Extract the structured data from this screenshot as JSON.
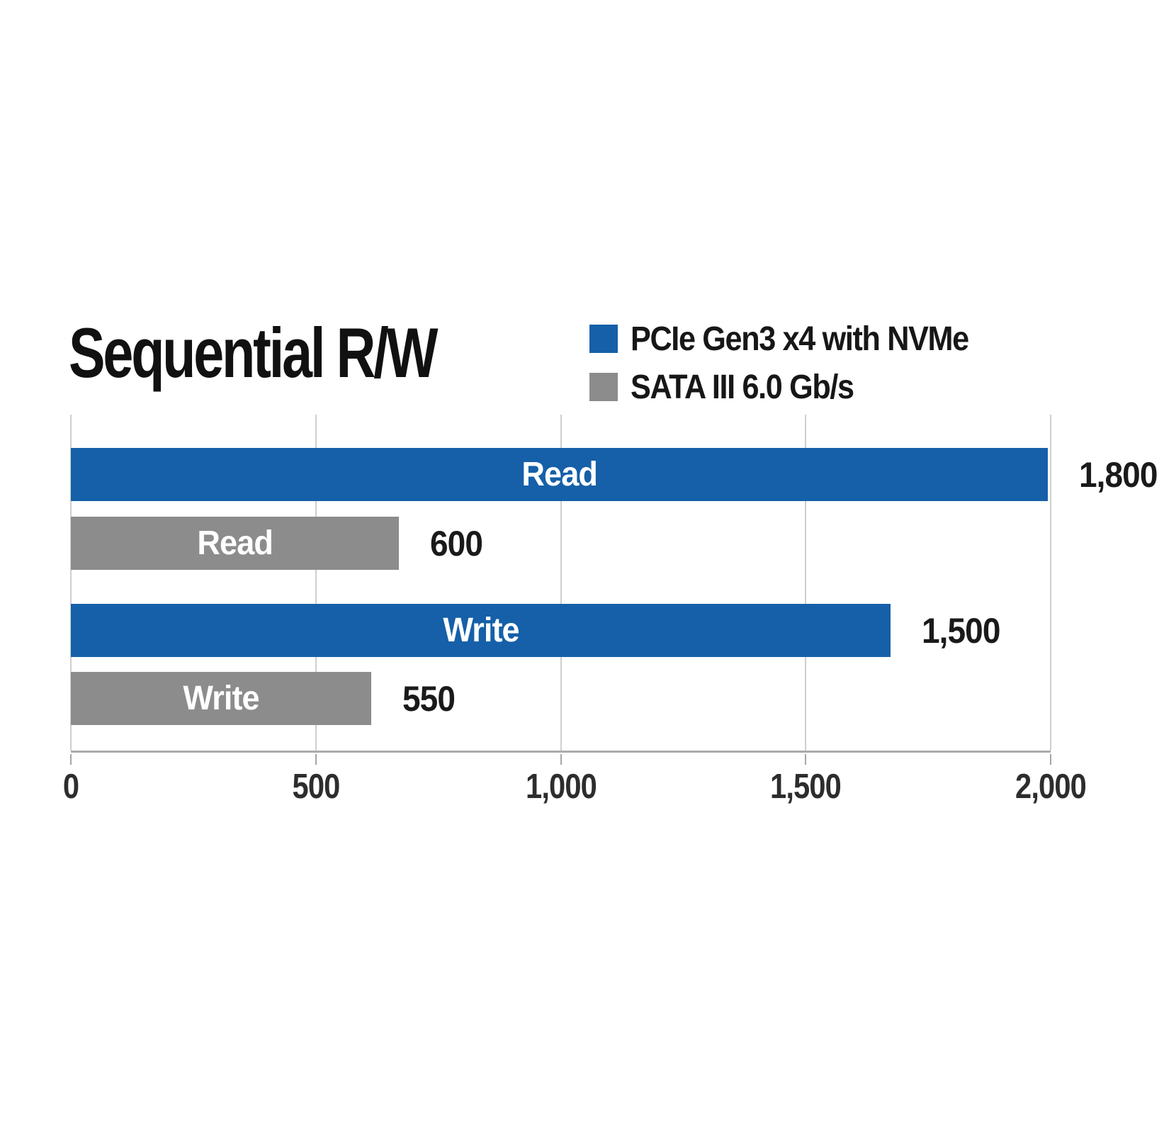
{
  "chart_data": {
    "type": "bar",
    "orientation": "horizontal",
    "title": "Sequential R/W",
    "legend_position": "top-right",
    "grid": true,
    "legend": [
      {
        "label": "PCIe Gen3 x4 with NVMe",
        "color": "#1560a8"
      },
      {
        "label": "SATA III 6.0 Gb/s",
        "color": "#8c8c8c"
      }
    ],
    "axis": {
      "min": 0,
      "max": 2000,
      "ticks": [
        0,
        500,
        1000,
        1500,
        2000
      ],
      "tick_labels": [
        "0",
        "500",
        "1,000",
        "1,500",
        "2,000"
      ]
    },
    "bars": [
      {
        "series": "PCIe Gen3 x4 with NVMe",
        "label": "Read",
        "value": 1800,
        "value_label": "1,800",
        "color": "#1560a8"
      },
      {
        "series": "SATA III 6.0 Gb/s",
        "label": "Read",
        "value": 600,
        "value_label": "600",
        "color": "#8c8c8c"
      },
      {
        "series": "PCIe Gen3 x4 with NVMe",
        "label": "Write",
        "value": 1500,
        "value_label": "1,500",
        "color": "#1560a8"
      },
      {
        "series": "SATA III 6.0 Gb/s",
        "label": "Write",
        "value": 550,
        "value_label": "550",
        "color": "#8c8c8c"
      }
    ]
  },
  "colors": {
    "gridline": "#cfcfcf",
    "axis_line": "#ababab",
    "value_text": "#1a1a1a",
    "title_text": "#111111"
  }
}
